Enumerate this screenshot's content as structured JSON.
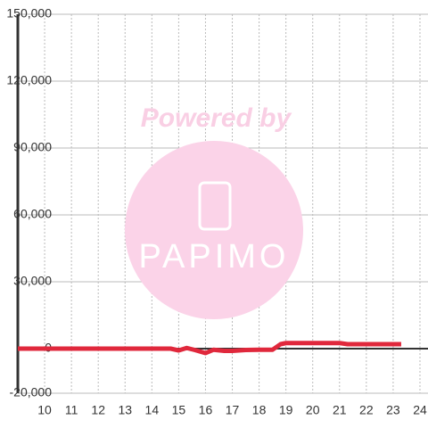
{
  "chart_data": {
    "type": "line",
    "watermark": {
      "text": "Powered by",
      "logo": "PAPIMO"
    },
    "x": [
      9,
      10,
      11,
      12,
      13,
      14,
      14.7,
      15,
      15.3,
      15.6,
      16,
      16.3,
      16.7,
      17,
      17.5,
      18,
      18.5,
      18.8,
      19,
      20,
      21,
      21.3,
      22,
      23.3
    ],
    "values": [
      0,
      0,
      0,
      0,
      0,
      0,
      0,
      -800,
      300,
      -600,
      -2000,
      -500,
      -1000,
      -1000,
      -600,
      -500,
      -500,
      2000,
      2500,
      2500,
      2500,
      2000,
      2000,
      2000
    ],
    "color": "#e0283c",
    "xlim": [
      9,
      24.3
    ],
    "xticks": [
      10,
      11,
      12,
      13,
      14,
      15,
      16,
      17,
      18,
      19,
      20,
      21,
      22,
      23,
      24
    ],
    "ylim": [
      -20000,
      150000
    ],
    "yticks": [
      {
        "value": -20000,
        "label": "-20,000"
      },
      0,
      {
        "value": 30000,
        "label": "30,000"
      },
      {
        "value": 60000,
        "label": "60,000"
      },
      {
        "value": 90000,
        "label": "90,000"
      },
      {
        "value": 120000,
        "label": "120,000"
      },
      {
        "value": 150000,
        "label": "150,000"
      }
    ],
    "grid": true
  }
}
